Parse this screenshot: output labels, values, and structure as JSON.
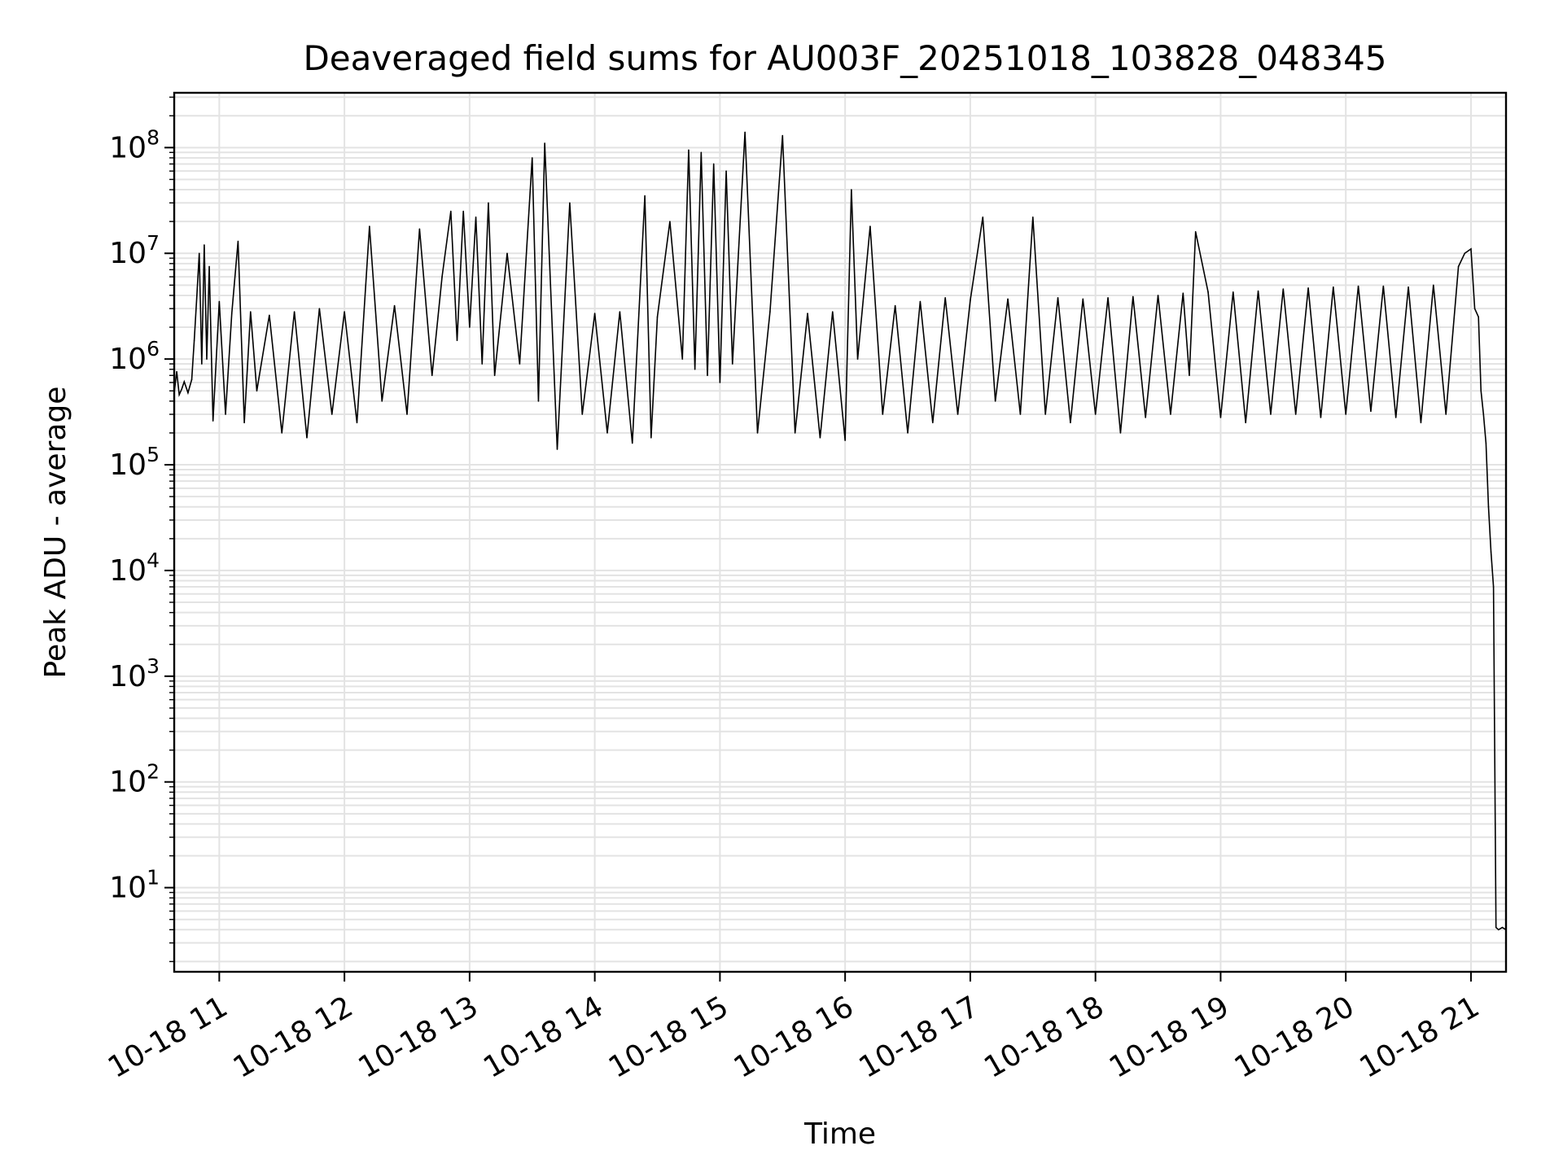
{
  "chart_data": {
    "type": "line",
    "title": "Deaveraged field sums for AU003F_20251018_103828_048345",
    "xlabel": "Time",
    "ylabel": "Peak ADU - average",
    "yscale": "log",
    "ylim": [
      1.6,
      330000000
    ],
    "xlim_hours": [
      10.64,
      21.28
    ],
    "x_ticks": [
      {
        "hour": 11,
        "label": "10-18 11"
      },
      {
        "hour": 12,
        "label": "10-18 12"
      },
      {
        "hour": 13,
        "label": "10-18 13"
      },
      {
        "hour": 14,
        "label": "10-18 14"
      },
      {
        "hour": 15,
        "label": "10-18 15"
      },
      {
        "hour": 16,
        "label": "10-18 16"
      },
      {
        "hour": 17,
        "label": "10-18 17"
      },
      {
        "hour": 18,
        "label": "10-18 18"
      },
      {
        "hour": 19,
        "label": "10-18 19"
      },
      {
        "hour": 20,
        "label": "10-18 20"
      },
      {
        "hour": 21,
        "label": "10-18 21"
      }
    ],
    "y_ticks": [
      {
        "value": 10,
        "base": "10",
        "exp": "1"
      },
      {
        "value": 100,
        "base": "10",
        "exp": "2"
      },
      {
        "value": 1000,
        "base": "10",
        "exp": "3"
      },
      {
        "value": 10000,
        "base": "10",
        "exp": "4"
      },
      {
        "value": 100000,
        "base": "10",
        "exp": "5"
      },
      {
        "value": 1000000,
        "base": "10",
        "exp": "6"
      },
      {
        "value": 10000000,
        "base": "10",
        "exp": "7"
      },
      {
        "value": 100000000,
        "base": "10",
        "exp": "8"
      }
    ],
    "grid": true,
    "series": [
      {
        "name": "Peak ADU - average",
        "color": "#000000",
        "x_hours": [
          10.64,
          10.66,
          10.68,
          10.7,
          10.72,
          10.75,
          10.78,
          10.8,
          10.82,
          10.84,
          10.86,
          10.88,
          10.9,
          10.92,
          10.95,
          11.0,
          11.05,
          11.1,
          11.15,
          11.2,
          11.25,
          11.3,
          11.4,
          11.5,
          11.6,
          11.7,
          11.8,
          11.9,
          12.0,
          12.1,
          12.2,
          12.3,
          12.4,
          12.5,
          12.6,
          12.7,
          12.78,
          12.85,
          12.9,
          12.95,
          13.0,
          13.05,
          13.1,
          13.15,
          13.2,
          13.3,
          13.4,
          13.5,
          13.55,
          13.6,
          13.7,
          13.8,
          13.9,
          14.0,
          14.1,
          14.2,
          14.3,
          14.4,
          14.45,
          14.5,
          14.6,
          14.7,
          14.75,
          14.8,
          14.85,
          14.9,
          14.95,
          15.0,
          15.05,
          15.1,
          15.2,
          15.3,
          15.4,
          15.5,
          15.6,
          15.7,
          15.8,
          15.9,
          16.0,
          16.05,
          16.1,
          16.2,
          16.3,
          16.4,
          16.5,
          16.6,
          16.7,
          16.8,
          16.9,
          17.0,
          17.1,
          17.2,
          17.3,
          17.4,
          17.5,
          17.6,
          17.7,
          17.8,
          17.9,
          18.0,
          18.1,
          18.2,
          18.3,
          18.4,
          18.5,
          18.6,
          18.7,
          18.75,
          18.8,
          18.9,
          19.0,
          19.1,
          19.2,
          19.3,
          19.4,
          19.5,
          19.6,
          19.7,
          19.8,
          19.9,
          20.0,
          20.1,
          20.2,
          20.3,
          20.4,
          20.5,
          20.6,
          20.7,
          20.8,
          20.9,
          20.95,
          21.0,
          21.03,
          21.06,
          21.08,
          21.1,
          21.12,
          21.14,
          21.16,
          21.18,
          21.2,
          21.22,
          21.25,
          21.28
        ],
        "values": [
          480000,
          760000,
          460000,
          520000,
          610000,
          480000,
          640000,
          1500000,
          3800000,
          10000000,
          900000,
          12000000,
          1000000,
          7500000,
          260000,
          3500000,
          300000,
          2700000,
          13000000,
          250000,
          2800000,
          500000,
          2600000,
          200000,
          2800000,
          180000,
          3000000,
          300000,
          2800000,
          250000,
          18000000,
          400000,
          3200000,
          300000,
          17000000,
          700000,
          6000000,
          25000000,
          1500000,
          25000000,
          2000000,
          22000000,
          900000,
          30000000,
          700000,
          10000000,
          900000,
          80000000,
          400000,
          110000000,
          140000,
          30000000,
          300000,
          2700000,
          200000,
          2800000,
          160000,
          35000000,
          180000,
          2500000,
          20000000,
          1000000,
          95000000,
          800000,
          90000000,
          700000,
          70000000,
          600000,
          60000000,
          900000,
          140000000,
          200000,
          2800000,
          130000000,
          200000,
          2700000,
          180000,
          2800000,
          170000,
          40000000,
          1000000,
          18000000,
          300000,
          3200000,
          200000,
          3500000,
          250000,
          3800000,
          300000,
          3600000,
          22000000,
          400000,
          3700000,
          300000,
          22000000,
          300000,
          3800000,
          250000,
          3700000,
          300000,
          3800000,
          200000,
          3900000,
          280000,
          4000000,
          300000,
          4200000,
          700000,
          16000000,
          4300000,
          280000,
          4300000,
          250000,
          4400000,
          300000,
          4600000,
          300000,
          4700000,
          280000,
          4800000,
          300000,
          4900000,
          320000,
          4900000,
          280000,
          4800000,
          250000,
          5000000,
          300000,
          7500000,
          10000000,
          11000000,
          3000000,
          2500000,
          500000,
          300000,
          160000,
          40000,
          15000,
          7000,
          4.2,
          4.0,
          4.2,
          4.0
        ]
      }
    ]
  }
}
